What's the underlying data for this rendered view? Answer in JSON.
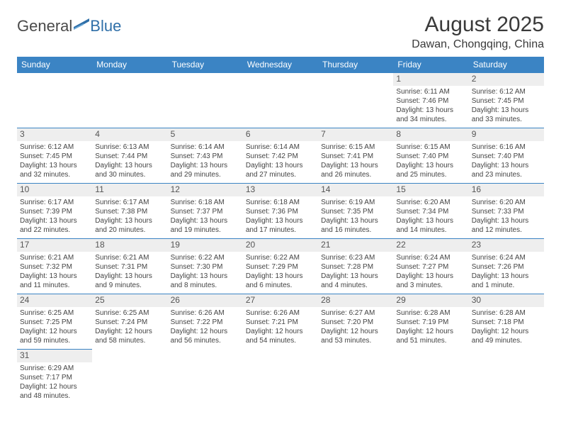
{
  "brand": {
    "part1": "General",
    "part2": "Blue"
  },
  "title": "August 2025",
  "location": "Dawan, Chongqing, China",
  "colors": {
    "header_bg": "#3b84c4",
    "header_fg": "#ffffff",
    "border": "#3b84c4",
    "daynum_bg": "#eeeeee",
    "text": "#444444",
    "title": "#3a3a3a"
  },
  "daysOfWeek": [
    "Sunday",
    "Monday",
    "Tuesday",
    "Wednesday",
    "Thursday",
    "Friday",
    "Saturday"
  ],
  "labels": {
    "sunrise": "Sunrise:",
    "sunset": "Sunset:",
    "daylight": "Daylight:"
  },
  "firstDayIndex": 5,
  "daysInMonth": 31,
  "days": {
    "1": {
      "sunrise": "6:11 AM",
      "sunset": "7:46 PM",
      "daylight": "13 hours and 34 minutes."
    },
    "2": {
      "sunrise": "6:12 AM",
      "sunset": "7:45 PM",
      "daylight": "13 hours and 33 minutes."
    },
    "3": {
      "sunrise": "6:12 AM",
      "sunset": "7:45 PM",
      "daylight": "13 hours and 32 minutes."
    },
    "4": {
      "sunrise": "6:13 AM",
      "sunset": "7:44 PM",
      "daylight": "13 hours and 30 minutes."
    },
    "5": {
      "sunrise": "6:14 AM",
      "sunset": "7:43 PM",
      "daylight": "13 hours and 29 minutes."
    },
    "6": {
      "sunrise": "6:14 AM",
      "sunset": "7:42 PM",
      "daylight": "13 hours and 27 minutes."
    },
    "7": {
      "sunrise": "6:15 AM",
      "sunset": "7:41 PM",
      "daylight": "13 hours and 26 minutes."
    },
    "8": {
      "sunrise": "6:15 AM",
      "sunset": "7:40 PM",
      "daylight": "13 hours and 25 minutes."
    },
    "9": {
      "sunrise": "6:16 AM",
      "sunset": "7:40 PM",
      "daylight": "13 hours and 23 minutes."
    },
    "10": {
      "sunrise": "6:17 AM",
      "sunset": "7:39 PM",
      "daylight": "13 hours and 22 minutes."
    },
    "11": {
      "sunrise": "6:17 AM",
      "sunset": "7:38 PM",
      "daylight": "13 hours and 20 minutes."
    },
    "12": {
      "sunrise": "6:18 AM",
      "sunset": "7:37 PM",
      "daylight": "13 hours and 19 minutes."
    },
    "13": {
      "sunrise": "6:18 AM",
      "sunset": "7:36 PM",
      "daylight": "13 hours and 17 minutes."
    },
    "14": {
      "sunrise": "6:19 AM",
      "sunset": "7:35 PM",
      "daylight": "13 hours and 16 minutes."
    },
    "15": {
      "sunrise": "6:20 AM",
      "sunset": "7:34 PM",
      "daylight": "13 hours and 14 minutes."
    },
    "16": {
      "sunrise": "6:20 AM",
      "sunset": "7:33 PM",
      "daylight": "13 hours and 12 minutes."
    },
    "17": {
      "sunrise": "6:21 AM",
      "sunset": "7:32 PM",
      "daylight": "13 hours and 11 minutes."
    },
    "18": {
      "sunrise": "6:21 AM",
      "sunset": "7:31 PM",
      "daylight": "13 hours and 9 minutes."
    },
    "19": {
      "sunrise": "6:22 AM",
      "sunset": "7:30 PM",
      "daylight": "13 hours and 8 minutes."
    },
    "20": {
      "sunrise": "6:22 AM",
      "sunset": "7:29 PM",
      "daylight": "13 hours and 6 minutes."
    },
    "21": {
      "sunrise": "6:23 AM",
      "sunset": "7:28 PM",
      "daylight": "13 hours and 4 minutes."
    },
    "22": {
      "sunrise": "6:24 AM",
      "sunset": "7:27 PM",
      "daylight": "13 hours and 3 minutes."
    },
    "23": {
      "sunrise": "6:24 AM",
      "sunset": "7:26 PM",
      "daylight": "13 hours and 1 minute."
    },
    "24": {
      "sunrise": "6:25 AM",
      "sunset": "7:25 PM",
      "daylight": "12 hours and 59 minutes."
    },
    "25": {
      "sunrise": "6:25 AM",
      "sunset": "7:24 PM",
      "daylight": "12 hours and 58 minutes."
    },
    "26": {
      "sunrise": "6:26 AM",
      "sunset": "7:22 PM",
      "daylight": "12 hours and 56 minutes."
    },
    "27": {
      "sunrise": "6:26 AM",
      "sunset": "7:21 PM",
      "daylight": "12 hours and 54 minutes."
    },
    "28": {
      "sunrise": "6:27 AM",
      "sunset": "7:20 PM",
      "daylight": "12 hours and 53 minutes."
    },
    "29": {
      "sunrise": "6:28 AM",
      "sunset": "7:19 PM",
      "daylight": "12 hours and 51 minutes."
    },
    "30": {
      "sunrise": "6:28 AM",
      "sunset": "7:18 PM",
      "daylight": "12 hours and 49 minutes."
    },
    "31": {
      "sunrise": "6:29 AM",
      "sunset": "7:17 PM",
      "daylight": "12 hours and 48 minutes."
    }
  }
}
